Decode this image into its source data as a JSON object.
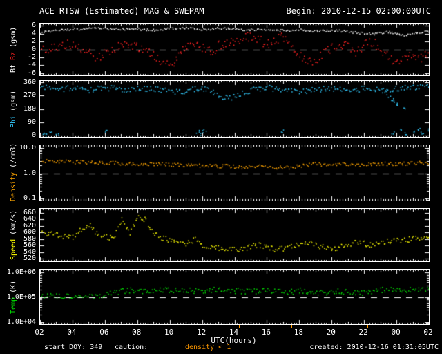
{
  "header": {
    "title": "ACE RTSW (Estimated) MAG & SWEPAM",
    "begin": "Begin: 2010-12-15 02:00:00UTC"
  },
  "footer": {
    "start_doy": "start DOY: 349",
    "caution_label": "caution:",
    "caution_value": "density < 1",
    "created": "created: 2010-12-16 01:31:05UTC"
  },
  "xaxis": {
    "label": "UTC(hours)"
  },
  "colors": {
    "background": "#000000",
    "frame": "#ffffff",
    "bt": "#ffffff",
    "bz": "#ff2222",
    "phi": "#33ccff",
    "density": "#ffa500",
    "speed": "#ffff00",
    "temp": "#00e000",
    "caution": "#ff9900"
  },
  "chart_data": {
    "type": "scatter",
    "title": "ACE RTSW (Estimated) MAG & SWEPAM",
    "begin": "2010-12-15 02:00:00UTC",
    "xlabel": "UTC(hours)",
    "x_start_hour": 2,
    "x_end_hour": 26,
    "x_step_hours": 0.5,
    "xtick_labels": [
      "02",
      "04",
      "06",
      "08",
      "10",
      "12",
      "14",
      "16",
      "18",
      "20",
      "22",
      "00",
      "02"
    ],
    "caution_hours": [
      14.3,
      17.5,
      22.2
    ],
    "panels": [
      {
        "id": "btbz",
        "scale": "linear",
        "ymin": -6.6,
        "ymax": 6.6,
        "dash_at": 0,
        "yticks": [
          {
            "v": 6,
            "label": "6"
          },
          {
            "v": 4,
            "label": "4"
          },
          {
            "v": 2,
            "label": "2"
          },
          {
            "v": 0,
            "label": "0"
          },
          {
            "v": -2,
            "label": "-2"
          },
          {
            "v": -4,
            "label": "-4"
          },
          {
            "v": -6,
            "label": "-6"
          }
        ],
        "label_parts": [
          {
            "text": "Bt ",
            "color": "#ffffff"
          },
          {
            "text": "Bz",
            "color": "#ff2222"
          },
          {
            "text": " (gsm)",
            "color": "#ffffff"
          }
        ],
        "series": [
          {
            "name": "Bt",
            "color": "#ffffff",
            "jitter": 1.5,
            "values": [
              4.4,
              4.7,
              5.0,
              5.2,
              5.3,
              5.2,
              5.4,
              5.5,
              5.4,
              5.3,
              5.2,
              5.4,
              5.3,
              5.1,
              5.0,
              5.2,
              5.4,
              5.5,
              5.6,
              5.4,
              5.2,
              5.3,
              5.5,
              5.4,
              5.2,
              5.0,
              5.1,
              5.3,
              5.2,
              5.0,
              4.9,
              5.0,
              5.1,
              4.9,
              4.8,
              4.9,
              5.0,
              4.8,
              4.6,
              4.4,
              4.2,
              4.0,
              4.3,
              4.6,
              4.2,
              3.7,
              4.0,
              4.5,
              4.6
            ]
          },
          {
            "name": "Bz",
            "color": "#ff2222",
            "jitter": 7,
            "values": [
              -0.5,
              0.5,
              1.0,
              1.5,
              0.8,
              0.2,
              -0.8,
              -2.0,
              -1.0,
              0.5,
              1.0,
              1.5,
              0.5,
              -0.5,
              -1.5,
              -2.8,
              -4.2,
              -1.5,
              0.5,
              1.2,
              0.3,
              -0.6,
              1.0,
              2.0,
              2.5,
              3.0,
              3.5,
              2.5,
              1.5,
              2.8,
              3.2,
              1.5,
              -1.5,
              -3.0,
              -2.5,
              -1.0,
              0.5,
              1.5,
              0.8,
              -0.5,
              1.2,
              2.0,
              0.5,
              -2.0,
              -3.2,
              -1.5,
              -0.8,
              -2.2,
              -1.0
            ]
          }
        ]
      },
      {
        "id": "phi",
        "scale": "linear",
        "ymin": -8,
        "ymax": 368,
        "dash_at": null,
        "yticks": [
          {
            "v": 360,
            "label": "360"
          },
          {
            "v": 270,
            "label": "270"
          },
          {
            "v": 180,
            "label": "180"
          },
          {
            "v": 90,
            "label": "90"
          },
          {
            "v": 0,
            "label": "0"
          }
        ],
        "label_parts": [
          {
            "text": "Phi",
            "color": "#33ccff"
          },
          {
            "text": " (gsm)",
            "color": "#ffffff"
          }
        ],
        "series": [
          {
            "name": "Phi",
            "color": "#33ccff",
            "jitter": 4,
            "values": [
              330,
              325,
              320,
              318,
              322,
              315,
              310,
              318,
              325,
              320,
              312,
              305,
              315,
              320,
              318,
              310,
              300,
              295,
              305,
              315,
              320,
              310,
              270,
              255,
              265,
              290,
              310,
              320,
              325,
              318,
              312,
              305,
              298,
              305,
              312,
              318,
              322,
              315,
              308,
              312,
              320,
              315,
              308,
              300,
              320,
              330,
              325,
              335,
              330
            ],
            "outliers": [
              [
                2.2,
                10
              ],
              [
                2.4,
                4
              ],
              [
                2.7,
                18
              ],
              [
                3.0,
                8
              ],
              [
                6.1,
                35
              ],
              [
                11.7,
                28
              ],
              [
                11.9,
                12
              ],
              [
                12.1,
                40
              ],
              [
                16.9,
                30
              ],
              [
                23.3,
                295
              ],
              [
                23.5,
                270
              ],
              [
                23.7,
                250
              ],
              [
                23.9,
                230
              ],
              [
                24.1,
                210
              ],
              [
                24.4,
                190
              ],
              [
                23.8,
                20
              ],
              [
                24.2,
                35
              ],
              [
                24.6,
                15
              ],
              [
                25.0,
                30
              ],
              [
                25.3,
                45
              ],
              [
                25.6,
                25
              ],
              [
                25.9,
                40
              ]
            ]
          }
        ]
      },
      {
        "id": "density",
        "scale": "log",
        "ymin": 0.085,
        "ymax": 12.6,
        "dash_at": 1.0,
        "yticks": [
          {
            "v": 10,
            "label": "10.0"
          },
          {
            "v": 1,
            "label": "1.0"
          },
          {
            "v": 0.1,
            "label": "0.1"
          }
        ],
        "label_parts": [
          {
            "text": "Density",
            "color": "#ffa500"
          },
          {
            "text": " (/cm3)",
            "color": "#ffffff"
          }
        ],
        "series": [
          {
            "name": "Density",
            "color": "#ffa500",
            "jitter": 2.5,
            "values": [
              3.0,
              3.2,
              2.9,
              3.1,
              2.8,
              3.0,
              2.7,
              2.8,
              2.6,
              2.7,
              2.5,
              2.6,
              2.4,
              2.5,
              2.3,
              2.4,
              2.2,
              2.3,
              2.1,
              2.2,
              2.0,
              2.1,
              1.9,
              2.0,
              1.9,
              1.8,
              1.9,
              2.0,
              1.9,
              1.8,
              1.7,
              1.8,
              2.0,
              2.2,
              2.4,
              2.3,
              2.2,
              2.4,
              2.3,
              2.2,
              2.3,
              2.4,
              2.5,
              2.4,
              2.3,
              2.5,
              2.6,
              2.7,
              2.6
            ]
          }
        ]
      },
      {
        "id": "speed",
        "scale": "linear",
        "ymin": 512,
        "ymax": 672,
        "dash_at": null,
        "yticks": [
          {
            "v": 660,
            "label": "660"
          },
          {
            "v": 640,
            "label": "640"
          },
          {
            "v": 620,
            "label": "620"
          },
          {
            "v": 600,
            "label": "600"
          },
          {
            "v": 580,
            "label": "580"
          },
          {
            "v": 560,
            "label": "560"
          },
          {
            "v": 540,
            "label": "540"
          },
          {
            "v": 520,
            "label": "520"
          }
        ],
        "label_parts": [
          {
            "text": "Speed",
            "color": "#ffff00"
          },
          {
            "text": " (km/s)",
            "color": "#ffffff"
          }
        ],
        "series": [
          {
            "name": "Speed",
            "color": "#ffff00",
            "jitter": 4,
            "values": [
              600,
              596,
              593,
              590,
              588,
              612,
              625,
              596,
              588,
              582,
              640,
              596,
              652,
              640,
              598,
              585,
              578,
              572,
              568,
              580,
              563,
              558,
              553,
              550,
              548,
              553,
              558,
              563,
              556,
              550,
              553,
              558,
              565,
              572,
              563,
              556,
              549,
              557,
              565,
              573,
              567,
              561,
              567,
              575,
              580,
              577,
              583,
              586,
              580
            ]
          }
        ]
      },
      {
        "id": "temp",
        "scale": "log",
        "ymin": 8000,
        "ymax": 1300000,
        "dash_at": 100000,
        "yticks": [
          {
            "v": 1000000,
            "label": "1.0E+06"
          },
          {
            "v": 100000,
            "label": "1.0E+05"
          },
          {
            "v": 10000,
            "label": "1.0E+04"
          }
        ],
        "label_parts": [
          {
            "text": "Temp",
            "color": "#00e000"
          },
          {
            "text": " (K)",
            "color": "#ffffff"
          }
        ],
        "series": [
          {
            "name": "Temp",
            "color": "#00e000",
            "jitter": 4,
            "values": [
              130000,
              120000,
              115000,
              110000,
              105000,
              100000,
              105000,
              110000,
              130000,
              160000,
              180000,
              200000,
              190000,
              180000,
              200000,
              210000,
              190000,
              220000,
              200000,
              180000,
              190000,
              200000,
              210000,
              200000,
              190000,
              180000,
              170000,
              190000,
              200000,
              180000,
              160000,
              170000,
              190000,
              180000,
              160000,
              150000,
              170000,
              180000,
              160000,
              150000,
              160000,
              180000,
              200000,
              220000,
              210000,
              200000,
              220000,
              230000,
              210000
            ]
          }
        ]
      }
    ]
  }
}
